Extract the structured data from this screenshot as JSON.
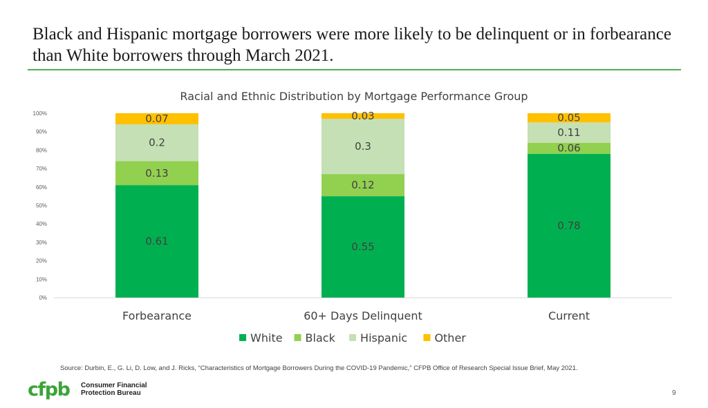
{
  "slide": {
    "title": "Black and Hispanic mortgage borrowers were more likely to be delinquent or in forbearance than White borrowers through March 2021.",
    "source": "Source: Durbin, E., G. Li, D. Low, and J. Ricks, “Characteristics of Mortgage Borrowers During the COVID-19 Pandemic,” CFPB Office of Research Special Issue Brief, May 2021.",
    "logo_text": "cfpb",
    "bureau_line1": "Consumer Financial",
    "bureau_line2": "Protection Bureau",
    "page_number": "9"
  },
  "colors": {
    "White": "#00b050",
    "Black": "#92d050",
    "Hispanic": "#c5e0b4",
    "Other": "#ffc000",
    "accent": "#4caf50"
  },
  "chart_data": {
    "type": "bar",
    "stacked": true,
    "title": "Racial and Ethnic Distribution by Mortgage Performance Group",
    "categories": [
      "Forbearance",
      "60+ Days Delinquent",
      "Current"
    ],
    "series": [
      {
        "name": "White",
        "values": [
          0.61,
          0.55,
          0.78
        ],
        "labels": [
          "0.61",
          "0.55",
          "0.78"
        ]
      },
      {
        "name": "Black",
        "values": [
          0.13,
          0.12,
          0.06
        ],
        "labels": [
          "0.13",
          "0.12",
          "0.06"
        ]
      },
      {
        "name": "Hispanic",
        "values": [
          0.2,
          0.3,
          0.11
        ],
        "labels": [
          "0.2",
          "0.3",
          "0.11"
        ]
      },
      {
        "name": "Other",
        "values": [
          0.07,
          0.03,
          0.05
        ],
        "labels": [
          "0.07",
          "0.03",
          "0.05"
        ]
      }
    ],
    "yticks": [
      {
        "value": 0,
        "label": "0%"
      },
      {
        "value": 0.1,
        "label": "10%"
      },
      {
        "value": 0.2,
        "label": "20%"
      },
      {
        "value": 0.3,
        "label": "30%"
      },
      {
        "value": 0.4,
        "label": "40%"
      },
      {
        "value": 0.5,
        "label": "50%"
      },
      {
        "value": 0.6,
        "label": "60%"
      },
      {
        "value": 0.7,
        "label": "70%"
      },
      {
        "value": 0.8,
        "label": "80%"
      },
      {
        "value": 0.9,
        "label": "90%"
      },
      {
        "value": 1.0,
        "label": "100%"
      }
    ],
    "ylim": [
      0,
      1
    ],
    "xlabel": "",
    "ylabel": "",
    "grid": false,
    "legend": "bottom"
  }
}
